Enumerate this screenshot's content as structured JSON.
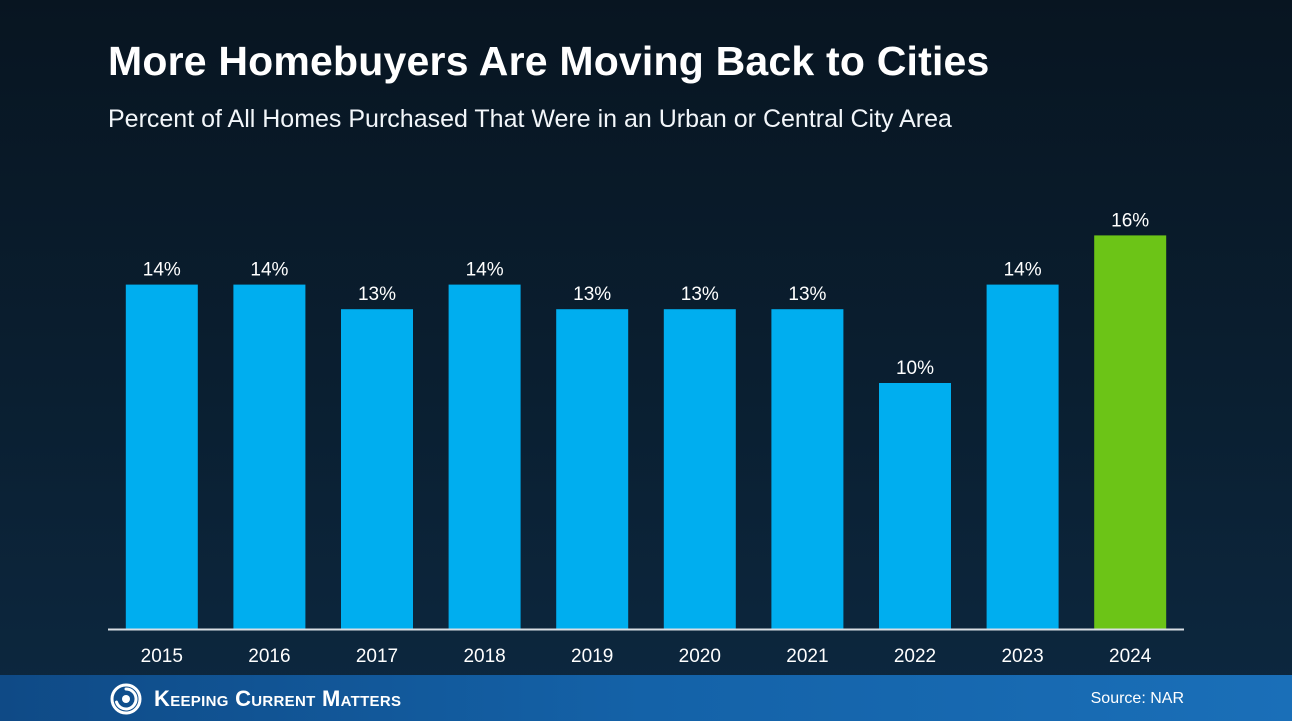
{
  "header": {
    "title": "More Homebuyers Are Moving Back to Cities",
    "subtitle": "Percent of All Homes Purchased That Were in an Urban or Central City Area"
  },
  "chart_data": {
    "type": "bar",
    "title": "More Homebuyers Are Moving Back to Cities",
    "subtitle": "Percent of All Homes Purchased That Were in an Urban or Central City Area",
    "categories": [
      "2015",
      "2016",
      "2017",
      "2018",
      "2019",
      "2020",
      "2021",
      "2022",
      "2023",
      "2024"
    ],
    "values": [
      14,
      14,
      13,
      14,
      13,
      13,
      13,
      10,
      14,
      16
    ],
    "data_labels": [
      "14%",
      "14%",
      "13%",
      "14%",
      "13%",
      "13%",
      "13%",
      "10%",
      "14%",
      "16%"
    ],
    "unit": "%",
    "ylim": [
      0,
      16
    ],
    "grid": false,
    "colors": {
      "bar": "#00aeef",
      "highlight_bar": "#6cc417",
      "highlight_category": "2024",
      "axis": "#d9dee4"
    }
  },
  "footer": {
    "brand": "Keeping Current Matters",
    "logo_icon": "kcm-swirl-icon",
    "source": "Source: NAR"
  }
}
